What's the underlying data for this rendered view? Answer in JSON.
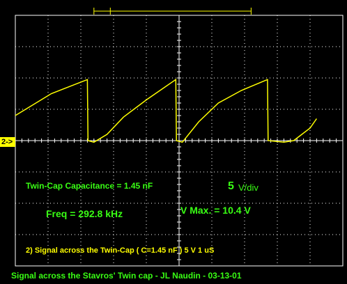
{
  "chart_data": {
    "type": "line",
    "title": "Signal across the Stavros' Twin cap - JL Naudin - 03-13-01",
    "channel_marker": "2->",
    "annotations": {
      "capacitance": "Twin-Cap Capacitance = 1.45 nF",
      "vdiv_number": "5",
      "vdiv_unit": "V/div",
      "frequency": "Freq = 292.8 kHz",
      "vmax": "V Max. = 10.4 V",
      "channel_description": "2) Signal across the Twin-Cap ( C=1.45 nF ) 5  V 1 uS"
    },
    "grid": true,
    "divisions": {
      "x": 10,
      "y": 8
    },
    "x_unit_per_div": "1 uS",
    "y_unit_per_div": "5 V",
    "series": [
      {
        "x": [
          0.0,
          1.1,
          2.2,
          2.22,
          2.4,
          2.8,
          3.3,
          4.0,
          4.9,
          4.92,
          5.1,
          5.6,
          6.2,
          6.9,
          7.7,
          7.72,
          8.2,
          8.5,
          9.0,
          9.2
        ],
        "y": [
          0.8,
          1.5,
          1.95,
          0.0,
          -0.05,
          0.2,
          0.75,
          1.3,
          1.95,
          0.0,
          -0.05,
          0.6,
          1.2,
          1.6,
          1.95,
          0.0,
          -0.05,
          0.0,
          0.4,
          0.7
        ]
      }
    ],
    "colors": {
      "trace": "#ffff00",
      "grid": "#ffffff",
      "annotation": "#39ff14",
      "background": "#000000"
    }
  }
}
